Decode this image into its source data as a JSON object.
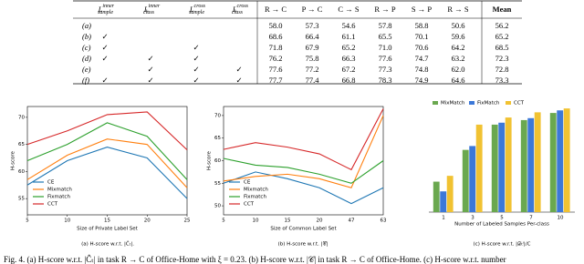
{
  "table": {
    "header": [
      {
        "base": "L",
        "sup": "inner",
        "sub": "sample"
      },
      {
        "base": "L",
        "sup": "inner",
        "sub": "class"
      },
      {
        "base": "L",
        "sup": "cross",
        "sub": "sample"
      },
      {
        "base": "L",
        "sup": "cross",
        "sub": "class"
      },
      "R → C",
      "P → C",
      "C → S",
      "R → P",
      "S → P",
      "R → S",
      "Mean"
    ],
    "rows": [
      {
        "label": "(a)",
        "cells": [
          null,
          null,
          null,
          null,
          "58.0",
          "57.3",
          "54.6",
          "57.8",
          "58.8",
          "50.6",
          "56.2"
        ]
      },
      {
        "label": "(b)",
        "cells": [
          "✓",
          null,
          null,
          null,
          "68.6",
          "66.4",
          "61.1",
          "65.5",
          "70.1",
          "59.6",
          "65.2"
        ]
      },
      {
        "label": "(c)",
        "cells": [
          "✓",
          null,
          "✓",
          null,
          "71.8",
          "67.9",
          "65.2",
          "71.0",
          "70.6",
          "64.2",
          "68.5"
        ]
      },
      {
        "label": "(d)",
        "cells": [
          "✓",
          "✓",
          "✓",
          null,
          "76.2",
          "75.8",
          "66.3",
          "77.6",
          "74.7",
          "63.2",
          "72.3"
        ]
      },
      {
        "label": "(e)",
        "cells": [
          null,
          "✓",
          "✓",
          "✓",
          "77.6",
          "77.2",
          "67.2",
          "77.3",
          "74.8",
          "62.0",
          "72.8"
        ]
      },
      {
        "label": "(f)",
        "cells": [
          "✓",
          "✓",
          "✓",
          "✓",
          "77.7",
          "77.4",
          "66.8",
          "78.3",
          "74.9",
          "64.6",
          "73.3"
        ]
      }
    ]
  },
  "chart_data": [
    {
      "type": "line",
      "caption": "(a) H-score w.r.t. |Ĉₜ|.",
      "xlabel": "Size of Private Label Set",
      "ylabel": "H-score",
      "x": [
        5,
        10,
        15,
        20,
        25
      ],
      "xlim": [
        5,
        25
      ],
      "xticks": [
        5,
        10,
        15,
        20,
        25
      ],
      "ylim": [
        52,
        72
      ],
      "yticks": [
        55,
        60,
        65,
        70
      ],
      "legend": "lower left",
      "series": [
        {
          "name": "CE",
          "color": "#1f77b4",
          "values": [
            57.5,
            62,
            64.5,
            62.5,
            55
          ]
        },
        {
          "name": "Mixmatch",
          "color": "#ff7f0e",
          "values": [
            58.5,
            63,
            66,
            65,
            57
          ]
        },
        {
          "name": "Fixmatch",
          "color": "#2ca02c",
          "values": [
            62,
            65,
            69,
            66.5,
            58.5
          ]
        },
        {
          "name": "CCT",
          "color": "#d62728",
          "values": [
            65,
            67.5,
            70.5,
            71,
            64
          ]
        }
      ]
    },
    {
      "type": "line",
      "caption": "(b) H-score w.r.t. |𝒞|",
      "xlabel": "Size of Common Label Set",
      "ylabel": "H-score",
      "categories": [
        "5",
        "10",
        "15",
        "20",
        "47",
        "63"
      ],
      "ylim": [
        48,
        72
      ],
      "yticks": [
        50,
        55,
        60,
        65,
        70
      ],
      "legend": "lower left",
      "series": [
        {
          "name": "CE",
          "color": "#1f77b4",
          "values": [
            55,
            57.5,
            56,
            54,
            50.5,
            54
          ]
        },
        {
          "name": "Mixmatch",
          "color": "#ff7f0e",
          "values": [
            55.5,
            56.5,
            57,
            56,
            54,
            70
          ]
        },
        {
          "name": "Fixmatch",
          "color": "#2ca02c",
          "values": [
            60.5,
            59,
            58.5,
            57,
            55,
            60
          ]
        },
        {
          "name": "CCT",
          "color": "#d62728",
          "values": [
            62.5,
            64,
            63,
            61.5,
            58,
            71.5
          ]
        }
      ]
    },
    {
      "type": "bar",
      "caption": "(c) H-score w.r.t. |𝒟ₜˡ|/C",
      "xlabel": "Number of Labeled Samples Per-class",
      "categories": [
        "1",
        "3",
        "5",
        "7",
        "10"
      ],
      "ylim": [
        0,
        85
      ],
      "legend": "upper left",
      "series": [
        {
          "name": "MixMatch",
          "color": "#6aa84f",
          "values": [
            23.5,
            48,
            67.5,
            71,
            76.5
          ]
        },
        {
          "name": "FixMatch",
          "color": "#3c78d8",
          "values": [
            16,
            51,
            69,
            72.5,
            78.5
          ]
        },
        {
          "name": "CCT",
          "color": "#f1c232",
          "values": [
            28,
            67.5,
            73,
            77,
            80
          ]
        }
      ]
    }
  ],
  "figure_caption": "Fig. 4.  (a) H-score w.r.t. |Ĉₜ| in task R → C of Office-Home with ξ = 0.23. (b) H-score w.r.t. |𝒞| in task R → C of Office-Home. (c) H-score w.r.t. number"
}
